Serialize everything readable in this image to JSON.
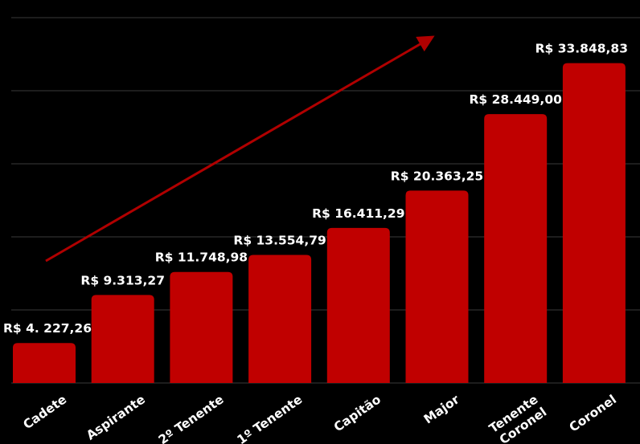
{
  "chart_data": {
    "type": "bar",
    "title": "",
    "xlabel": "",
    "ylabel": "",
    "categories": [
      "Cadete",
      "Aspirante",
      "2º Tenente",
      "1º Tenente",
      "Capitão",
      "Major",
      "Tenente Coronel",
      "Coronel"
    ],
    "category_lines": [
      [
        "Cadete"
      ],
      [
        "Aspirante"
      ],
      [
        "2º Tenente"
      ],
      [
        "1º Tenente"
      ],
      [
        "Capitão"
      ],
      [
        "Major"
      ],
      [
        "Tenente",
        "Coronel"
      ],
      [
        "Coronel"
      ]
    ],
    "values": [
      4227.26,
      9313.27,
      11748.98,
      13554.79,
      16411.29,
      20363.25,
      28449.0,
      33848.83
    ],
    "data_labels": [
      "R$ 4. 227,26",
      "R$ 9.313,27",
      "R$ 11.748,98",
      "R$ 13.554,79",
      "R$ 16.411,29",
      "R$ 20.363,25",
      "R$ 28.449,00",
      "R$ 33.848,83"
    ],
    "ylim": [
      0,
      39000
    ],
    "grid": true,
    "colors": {
      "bar": "#c00000",
      "background": "#000000",
      "grid": "#3a3a3a",
      "text": "#ffffff",
      "arrow": "#b00000"
    },
    "annotations": [
      {
        "type": "trend-arrow",
        "direction": "up-right"
      }
    ]
  }
}
